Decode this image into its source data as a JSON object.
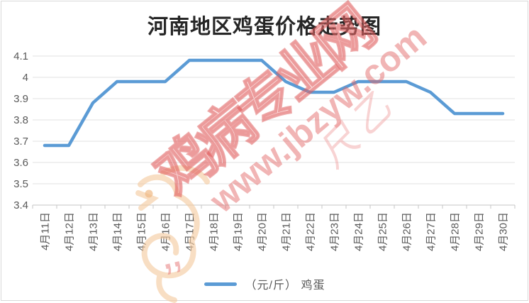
{
  "title": "河南地区鸡蛋价格走势图",
  "legend": {
    "label": "（元/斤） 鸡蛋"
  },
  "watermark": {
    "brand_text": "鸡病专业网",
    "url_text": "www.jbzyw.com",
    "script_text": "尺乙",
    "quotes_text": "’’"
  },
  "colors": {
    "line": "#5B9BD5",
    "gridline": "#E2E2E2",
    "axis": "#C6C6C6",
    "label": "#595959",
    "watermark_red": "#E06060",
    "watermark_orange": "#F5CBA0"
  },
  "chart_data": {
    "type": "line",
    "title": "河南地区鸡蛋价格走势图",
    "x": [
      "4月11日",
      "4月12日",
      "4月13日",
      "4月14日",
      "4月15日",
      "4月16日",
      "4月17日",
      "4月18日",
      "4月19日",
      "4月20日",
      "4月21日",
      "4月22日",
      "4月23日",
      "4月24日",
      "4月25日",
      "4月26日",
      "4月27日",
      "4月28日",
      "4月29日",
      "4月30日"
    ],
    "series": [
      {
        "name": "（元/斤） 鸡蛋",
        "values": [
          3.68,
          3.68,
          3.88,
          3.98,
          3.98,
          3.98,
          4.08,
          4.08,
          4.08,
          4.08,
          3.98,
          3.93,
          3.93,
          3.98,
          3.98,
          3.98,
          3.93,
          3.83,
          3.83,
          3.83
        ]
      }
    ],
    "xlabel": "",
    "ylabel": "",
    "ylim": [
      3.4,
      4.1
    ],
    "yticks": [
      "3.4",
      "3.5",
      "3.6",
      "3.7",
      "3.8",
      "3.9",
      "4",
      "4.1"
    ],
    "grid": true,
    "legend_position": "bottom",
    "x_tick_rotation": 90
  }
}
